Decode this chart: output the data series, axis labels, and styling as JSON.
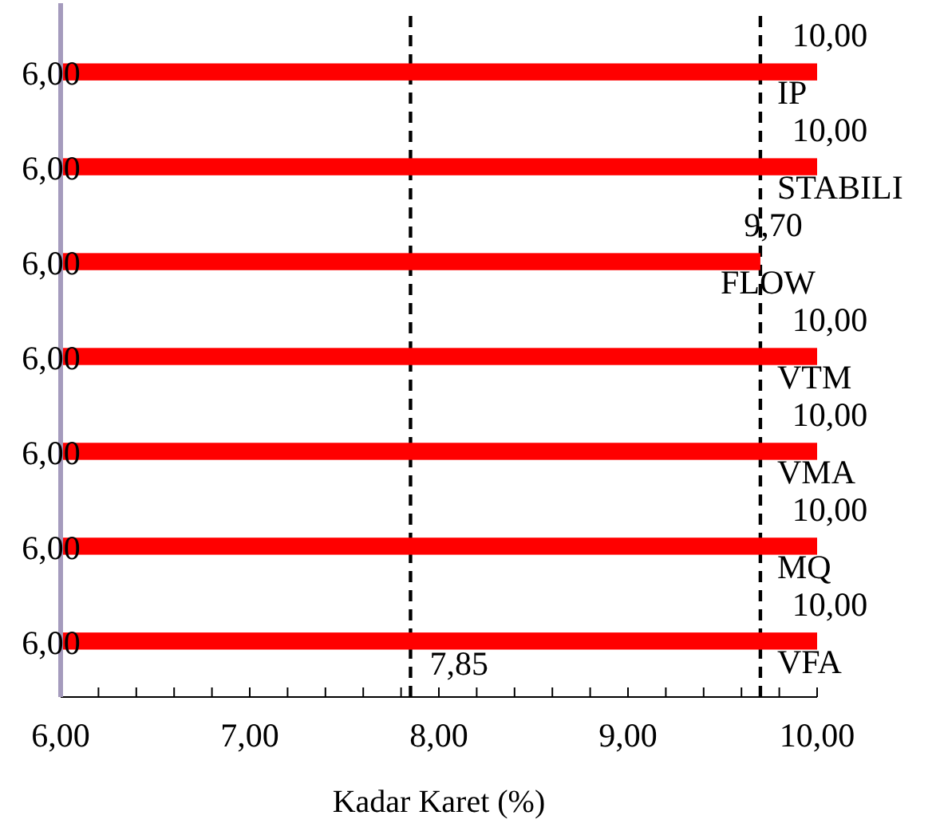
{
  "chart_data": {
    "type": "bar",
    "orientation": "horizontal",
    "xlabel": "Kadar Karet (%)",
    "categories": [
      "IP",
      "STABILI",
      "FLOW",
      "VTM",
      "VMA",
      "MQ",
      "VFA"
    ],
    "base": [
      6,
      6,
      6,
      6,
      6,
      6,
      6
    ],
    "values": [
      4,
      4,
      3.7,
      4,
      4,
      4,
      4
    ],
    "color": "#ff0000",
    "xlim": [
      6,
      10
    ],
    "xticks": [
      {
        "value": 6,
        "label": "6,00"
      },
      {
        "value": 6.2,
        "label": null
      },
      {
        "value": 6.4,
        "label": null
      },
      {
        "value": 6.6,
        "label": null
      },
      {
        "value": 6.8,
        "label": null
      },
      {
        "value": 7,
        "label": "7,00"
      },
      {
        "value": 7.2,
        "label": null
      },
      {
        "value": 7.4,
        "label": null
      },
      {
        "value": 7.6,
        "label": null
      },
      {
        "value": 7.8,
        "label": null
      },
      {
        "value": 8,
        "label": "8,00"
      },
      {
        "value": 8.2,
        "label": null
      },
      {
        "value": 8.4,
        "label": null
      },
      {
        "value": 8.6,
        "label": null
      },
      {
        "value": 8.8,
        "label": null
      },
      {
        "value": 9,
        "label": "9,00"
      },
      {
        "value": 9.2,
        "label": null
      },
      {
        "value": 9.4,
        "label": null
      },
      {
        "value": 9.6,
        "label": null
      },
      {
        "value": 9.8,
        "label": null
      },
      {
        "value": 10,
        "label": "10,00"
      }
    ],
    "ref_lines": [
      {
        "axis": "x",
        "value": 7.85,
        "label": "7,85",
        "color": "#000000",
        "line_style": "dashed"
      },
      {
        "axis": "x",
        "value": 9.7,
        "label": null,
        "color": "#000000",
        "line_style": "dashed"
      }
    ],
    "value_labels": [
      "10,00",
      "10,00",
      "9,70",
      "10,00",
      "10,00",
      "10,00",
      "10,00"
    ],
    "annotations": [
      "6,00",
      "6,00",
      "6,00",
      "6,00",
      "6,00",
      "6,00",
      "6,00"
    ]
  }
}
